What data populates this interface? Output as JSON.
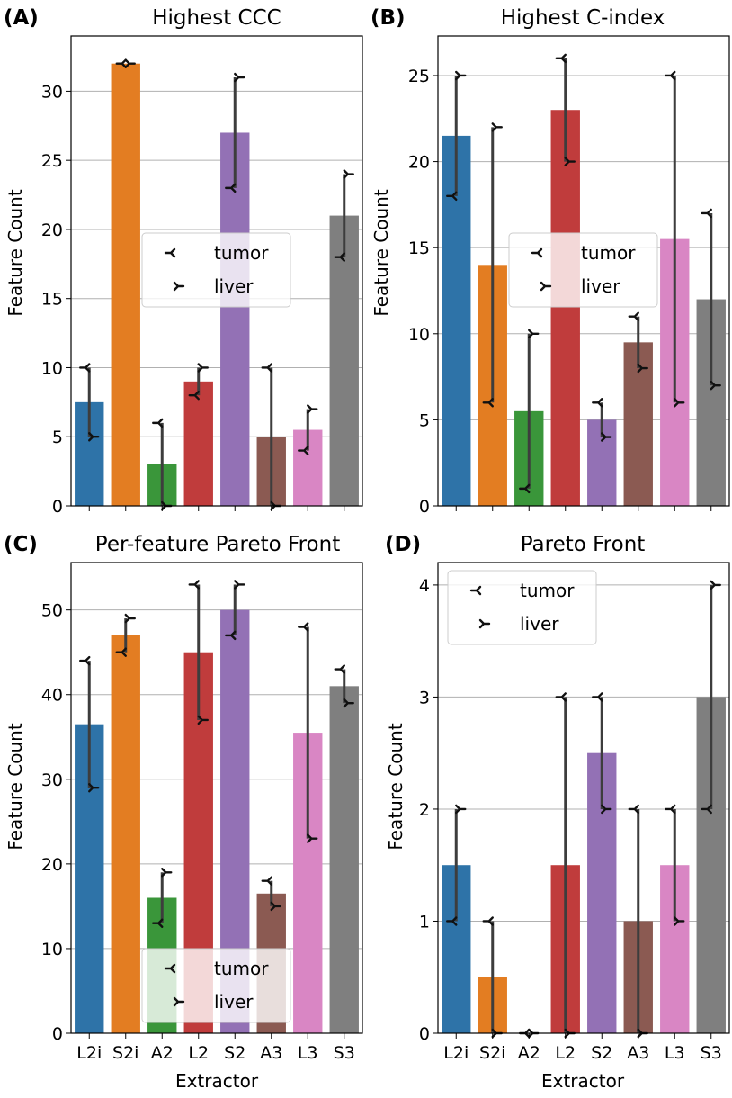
{
  "figure": {
    "x_axis_label": "Extractor",
    "y_axis_label": "Feature Count"
  },
  "colors": {
    "L2i": "#2e73a8",
    "S2i": "#e37d22",
    "A2": "#3a963a",
    "L2": "#c03c3c",
    "S2": "#9371b5",
    "A3": "#8b5a52",
    "L3": "#d986c4",
    "S3": "#7f7f7f",
    "errorbar": "#3d3d3d",
    "grid": "#b0b0b0"
  },
  "chart_data": [
    {
      "type": "bar",
      "label": "(A)",
      "title": "Highest CCC",
      "categories": [
        "L2i",
        "S2i",
        "A2",
        "L2",
        "S2",
        "A3",
        "L3",
        "S3"
      ],
      "values": [
        7.5,
        32,
        3,
        9,
        27,
        5,
        5.5,
        21
      ],
      "series": [
        {
          "name": "tumor",
          "values": [
            10,
            32,
            6,
            8,
            23,
            10,
            4,
            18
          ]
        },
        {
          "name": "liver",
          "values": [
            5,
            32,
            0,
            10,
            31,
            0,
            7,
            24
          ]
        }
      ],
      "ylabel": "Feature Count",
      "xlabel": "",
      "ylim": [
        0,
        34
      ],
      "yticks": [
        0,
        5,
        10,
        15,
        20,
        25,
        30
      ],
      "legend": "center-right",
      "grid": "y"
    },
    {
      "type": "bar",
      "label": "(B)",
      "title": "Highest C-index",
      "categories": [
        "L2i",
        "S2i",
        "A2",
        "L2",
        "S2",
        "A3",
        "L3",
        "S3"
      ],
      "values": [
        21.5,
        14,
        5.5,
        23,
        5,
        9.5,
        15.5,
        12
      ],
      "series": [
        {
          "name": "tumor",
          "values": [
            18,
            6,
            1,
            26,
            6,
            11,
            25,
            17
          ]
        },
        {
          "name": "liver",
          "values": [
            25,
            22,
            10,
            20,
            4,
            8,
            6,
            7
          ]
        }
      ],
      "ylabel": "Feature Count",
      "xlabel": "",
      "ylim": [
        0,
        27.3
      ],
      "yticks": [
        0,
        5,
        10,
        15,
        20,
        25
      ],
      "legend": "center-right",
      "grid": "y"
    },
    {
      "type": "bar",
      "label": "(C)",
      "title": "Per-feature Pareto Front",
      "categories": [
        "L2i",
        "S2i",
        "A2",
        "L2",
        "S2",
        "A3",
        "L3",
        "S3"
      ],
      "values": [
        36.5,
        47,
        16,
        45,
        50,
        16.5,
        35.5,
        41
      ],
      "series": [
        {
          "name": "tumor",
          "values": [
            44,
            45,
            13,
            53,
            47,
            18,
            48,
            43
          ]
        },
        {
          "name": "liver",
          "values": [
            29,
            49,
            19,
            37,
            53,
            15,
            23,
            39
          ]
        }
      ],
      "ylabel": "Feature Count",
      "xlabel": "Extractor",
      "ylim": [
        0,
        55.6
      ],
      "yticks": [
        0,
        10,
        20,
        30,
        40,
        50
      ],
      "legend": "lower-center",
      "grid": "y"
    },
    {
      "type": "bar",
      "label": "(D)",
      "title": "Pareto Front",
      "categories": [
        "L2i",
        "S2i",
        "A2",
        "L2",
        "S2",
        "A3",
        "L3",
        "S3"
      ],
      "values": [
        1.5,
        0.5,
        0,
        1.5,
        2.5,
        1,
        1.5,
        3
      ],
      "series": [
        {
          "name": "tumor",
          "values": [
            1,
            1,
            0,
            3,
            3,
            2,
            2,
            2
          ]
        },
        {
          "name": "liver",
          "values": [
            2,
            0,
            0,
            0,
            2,
            0,
            1,
            4
          ]
        }
      ],
      "ylabel": "Feature Count",
      "xlabel": "Extractor",
      "ylim": [
        0,
        4.2
      ],
      "yticks": [
        0,
        1,
        2,
        3,
        4
      ],
      "legend": "upper-left",
      "grid": "y"
    }
  ]
}
